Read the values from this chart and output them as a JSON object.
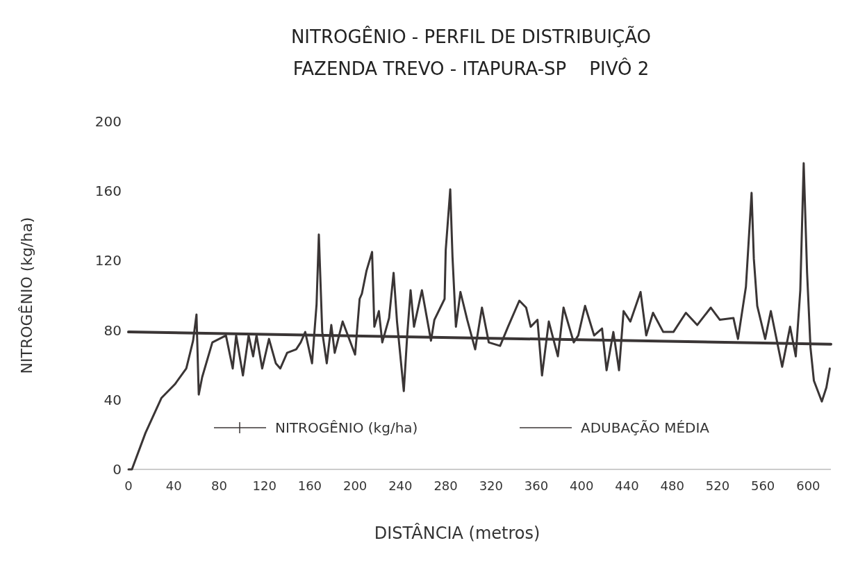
{
  "chart_data": {
    "type": "line",
    "title": "NITROGÊNIO - PERFIL DE DISTRIBUIÇÃO",
    "subtitle": "FAZENDA TREVO - ITAPURA-SP    PIVÔ 2",
    "xlabel": "DISTÂNCIA (metros)",
    "ylabel": "NITROGÊNIO (kg/ha)",
    "xlim": [
      0,
      620
    ],
    "xticks": [
      0,
      40,
      80,
      120,
      160,
      200,
      240,
      280,
      320,
      360,
      400,
      440,
      480,
      520,
      560,
      600
    ],
    "ylim": [
      0,
      200
    ],
    "yticks": [
      0,
      40,
      80,
      120,
      160,
      200
    ],
    "grid": false,
    "legend": "bottom",
    "series": [
      {
        "name": "NITROGÊNIO (kg/ha)",
        "color": "#3a3535",
        "x": [
          0,
          3,
          15,
          29,
          41,
          51,
          57,
          60,
          62,
          65,
          74,
          86,
          92,
          95,
          101,
          106,
          110,
          113,
          118,
          124,
          130,
          134,
          140,
          148,
          152,
          156,
          162,
          166,
          168,
          171,
          175,
          179,
          182,
          189,
          200,
          204,
          206,
          210,
          215,
          217,
          221,
          224,
          230,
          234,
          237,
          243,
          246,
          249,
          252,
          259,
          267,
          270,
          279,
          280,
          284,
          286,
          289,
          293,
          299,
          306,
          312,
          318,
          328,
          335,
          345,
          351,
          355,
          361,
          365,
          371,
          379,
          384,
          393,
          397,
          403,
          411,
          418,
          422,
          428,
          433,
          437,
          443,
          452,
          457,
          463,
          472,
          481,
          492,
          502,
          514,
          522,
          534,
          538,
          545,
          550,
          552,
          555,
          562,
          567,
          577,
          584,
          589,
          593,
          596,
          599,
          602,
          605,
          612,
          616,
          619
        ],
        "values": [
          0,
          0,
          21,
          41,
          49,
          58,
          74,
          89,
          43,
          53,
          73,
          77,
          58,
          77,
          54,
          77,
          65,
          77,
          58,
          75,
          61,
          58,
          67,
          69,
          73,
          79,
          61,
          95,
          135,
          79,
          61,
          83,
          67,
          85,
          66,
          98,
          101,
          114,
          125,
          82,
          91,
          73,
          87,
          113,
          85,
          45,
          77,
          103,
          82,
          103,
          74,
          86,
          98,
          126,
          161,
          122,
          82,
          102,
          86,
          69,
          93,
          73,
          71,
          82,
          97,
          93,
          82,
          86,
          54,
          85,
          65,
          93,
          73,
          77,
          94,
          77,
          81,
          57,
          79,
          57,
          91,
          85,
          102,
          77,
          90,
          79,
          79,
          90,
          83,
          93,
          86,
          87,
          75,
          105,
          159,
          121,
          94,
          75,
          91,
          59,
          82,
          65,
          103,
          176,
          113,
          70,
          51,
          39,
          47,
          58
        ]
      },
      {
        "name": "ADUBAÇÃO MÉDIA",
        "color": "#3a3535",
        "x": [
          0,
          620
        ],
        "values": [
          79,
          72
        ]
      }
    ]
  }
}
